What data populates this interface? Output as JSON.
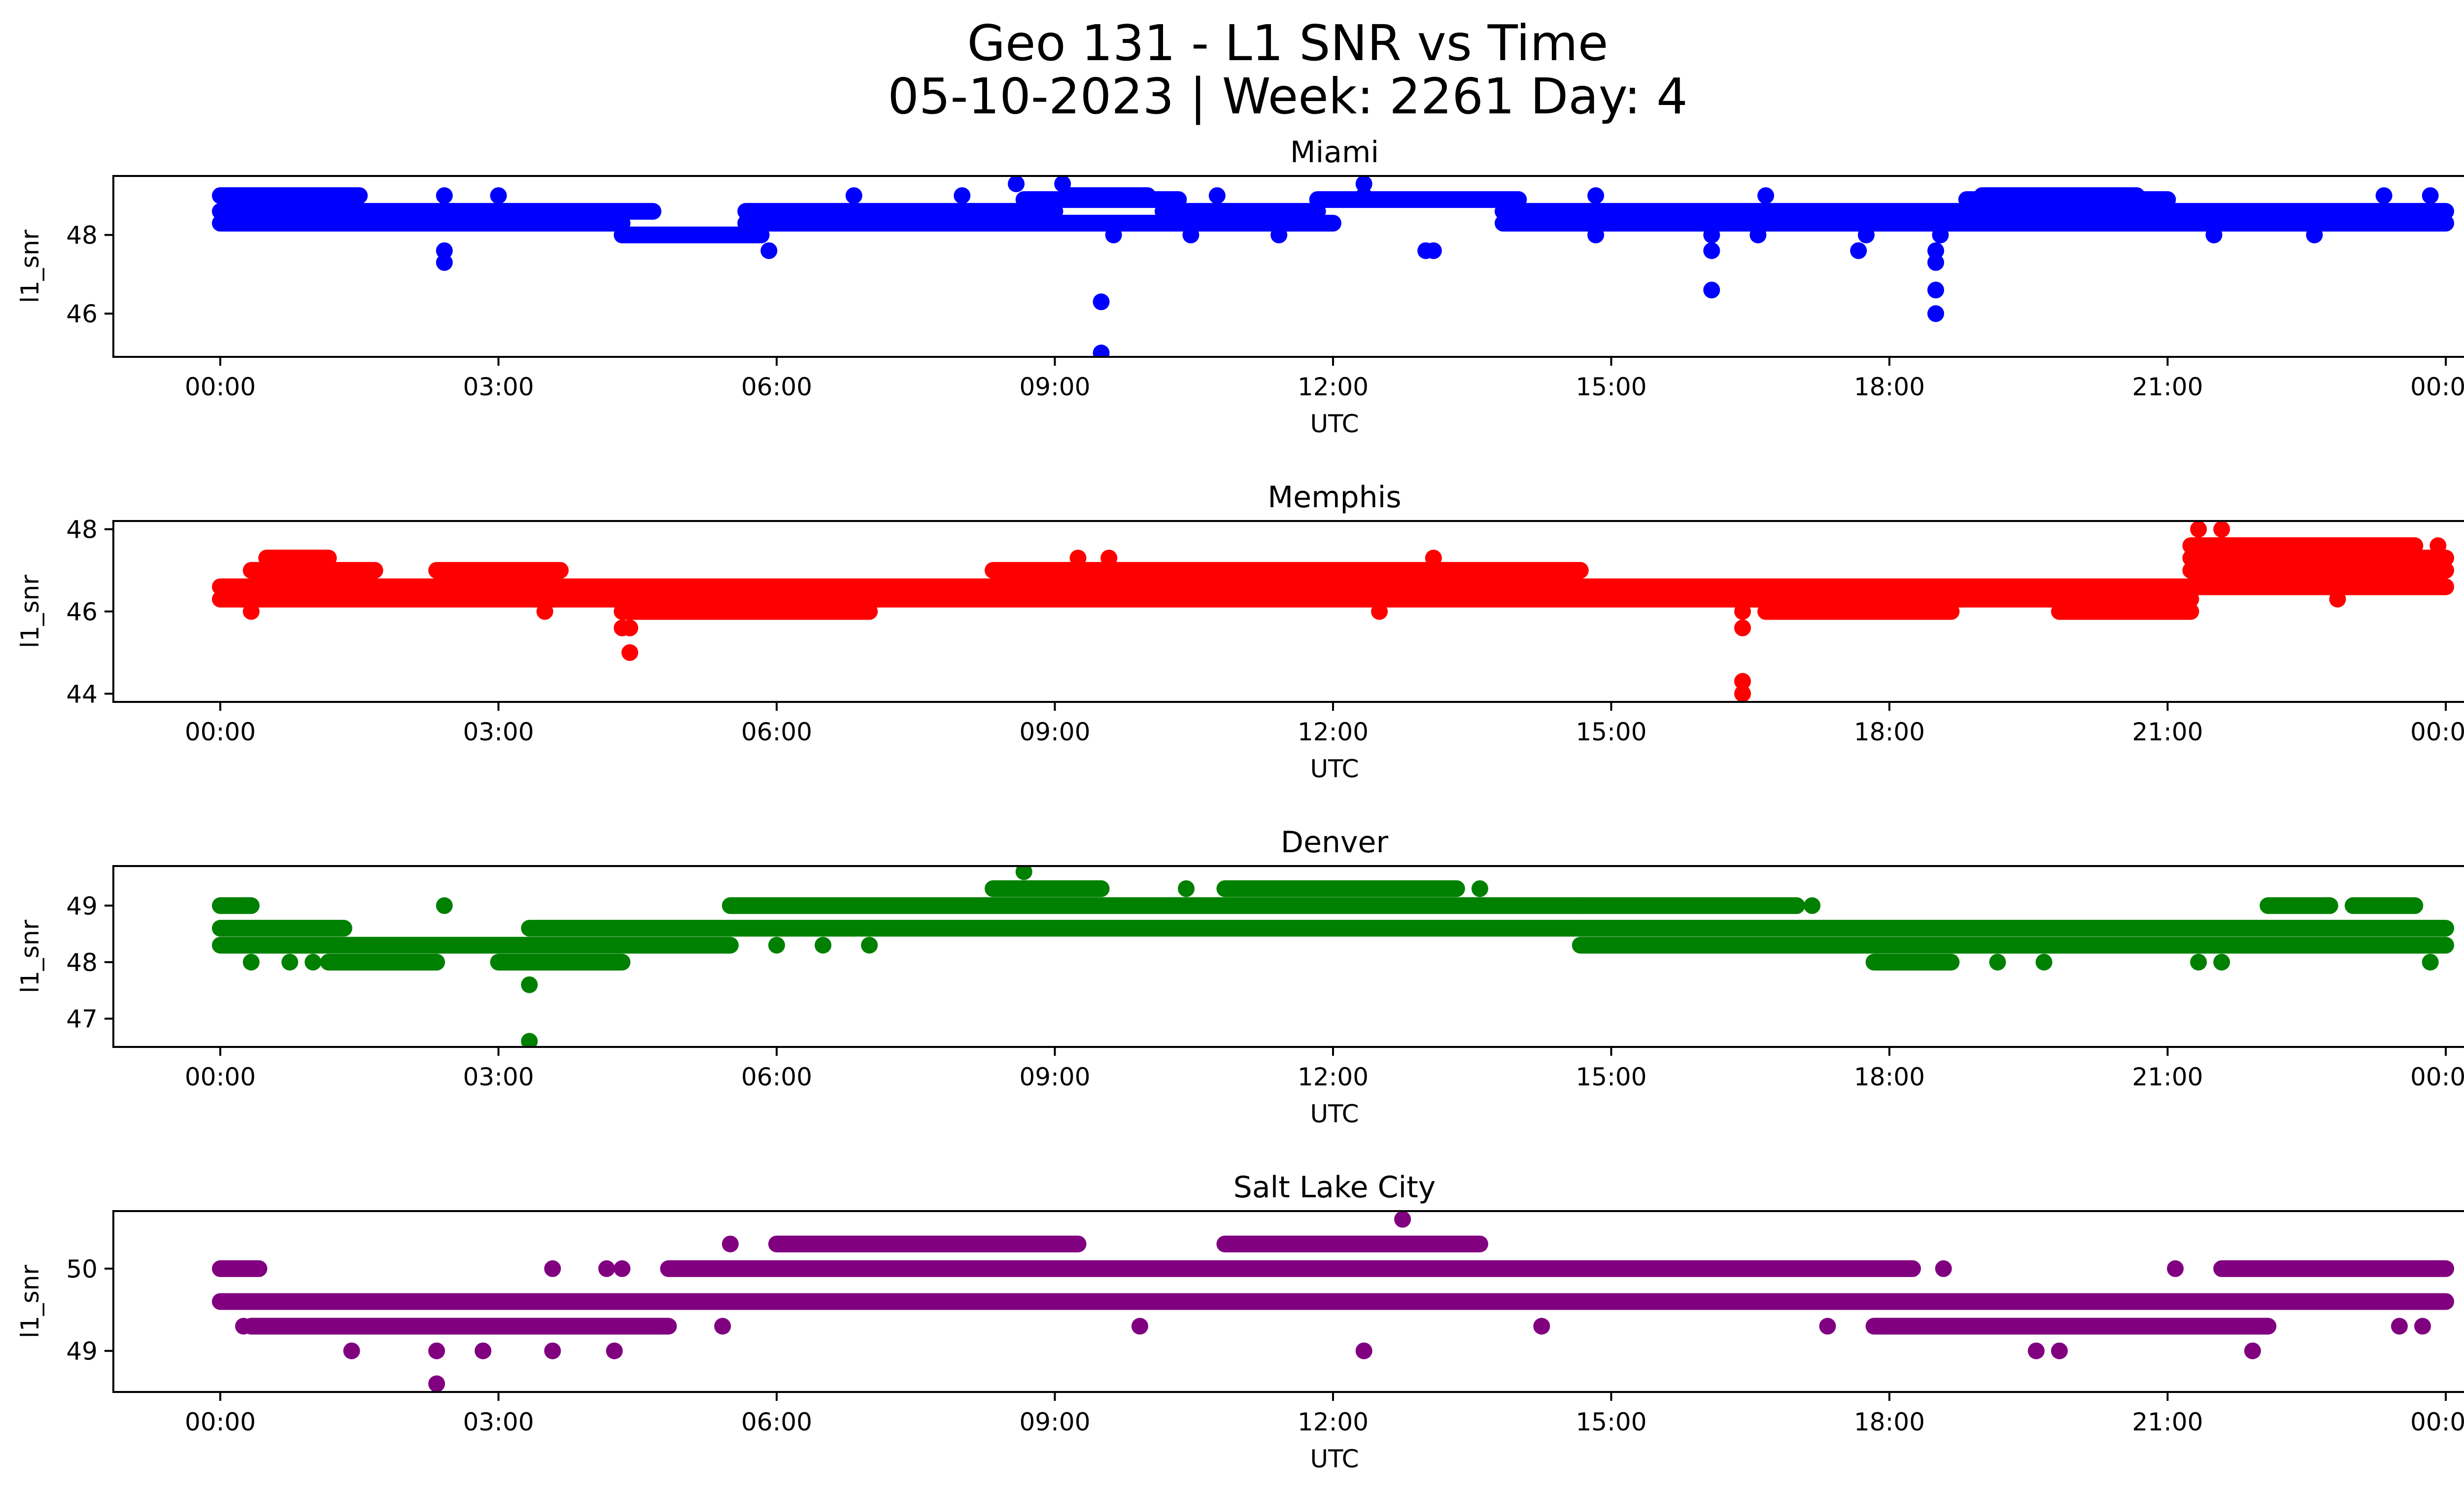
{
  "figure": {
    "title_line1": "Geo 131 - L1 SNR vs Time",
    "title_line2": "05-10-2023 | Week: 2261 Day: 4"
  },
  "chart_data": [
    {
      "type": "scatter",
      "title": "Miami",
      "color": "#0000ff",
      "xlabel": "UTC",
      "ylabel": "l1_snr",
      "xlim": [
        "00:00",
        "24:00"
      ],
      "ylim": [
        44.9,
        49.5
      ],
      "yticks": [
        46,
        48
      ],
      "xticks": [
        "00:00",
        "03:00",
        "06:00",
        "09:00",
        "12:00",
        "15:00",
        "18:00",
        "21:00",
        "00:00"
      ],
      "grid": false,
      "bands": [
        {
          "value": 48.3,
          "segments": [
            [
              "00:00",
              "04:20"
            ],
            [
              "05:40",
              "12:00"
            ],
            [
              "13:50",
              "24:00"
            ]
          ]
        },
        {
          "value": 48.6,
          "segments": [
            [
              "00:00",
              "04:40"
            ],
            [
              "05:40",
              "09:00"
            ],
            [
              "10:10",
              "11:50"
            ],
            [
              "13:50",
              "24:00"
            ]
          ]
        },
        {
          "value": 48.0,
          "segments": [
            [
              "04:20",
              "05:50"
            ]
          ]
        },
        {
          "value": 48.9,
          "segments": [
            [
              "08:40",
              "10:20"
            ],
            [
              "11:50",
              "14:00"
            ],
            [
              "18:50",
              "21:00"
            ]
          ]
        },
        {
          "value": 49.0,
          "segments": [
            [
              "00:00",
              "01:30"
            ],
            [
              "09:10",
              "10:00"
            ],
            [
              "19:00",
              "20:40"
            ]
          ]
        }
      ],
      "points": [
        [
          "02:25",
          47.6
        ],
        [
          "02:25",
          47.3
        ],
        [
          "05:55",
          47.6
        ],
        [
          "09:30",
          46.3
        ],
        [
          "09:30",
          45.0
        ],
        [
          "09:38",
          48.0
        ],
        [
          "10:28",
          48.0
        ],
        [
          "11:25",
          48.0
        ],
        [
          "12:20",
          49.3
        ],
        [
          "13:00",
          47.6
        ],
        [
          "13:05",
          47.6
        ],
        [
          "14:50",
          48.0
        ],
        [
          "16:05",
          47.6
        ],
        [
          "16:05",
          46.6
        ],
        [
          "16:05",
          48.0
        ],
        [
          "16:35",
          48.0
        ],
        [
          "17:40",
          47.6
        ],
        [
          "17:45",
          48.0
        ],
        [
          "18:30",
          47.6
        ],
        [
          "18:30",
          47.3
        ],
        [
          "18:30",
          46.6
        ],
        [
          "18:30",
          46.0
        ],
        [
          "18:33",
          48.0
        ],
        [
          "21:30",
          48.0
        ],
        [
          "22:35",
          48.0
        ],
        [
          "08:35",
          49.3
        ],
        [
          "09:05",
          49.3
        ],
        [
          "12:20",
          49.0
        ],
        [
          "02:25",
          49.0
        ],
        [
          "03:00",
          49.0
        ],
        [
          "06:50",
          49.0
        ],
        [
          "08:00",
          49.0
        ],
        [
          "10:45",
          49.0
        ],
        [
          "14:50",
          49.0
        ],
        [
          "16:40",
          49.0
        ],
        [
          "23:20",
          49.0
        ],
        [
          "23:50",
          49.0
        ]
      ]
    },
    {
      "type": "scatter",
      "title": "Memphis",
      "color": "#ff0000",
      "xlabel": "UTC",
      "ylabel": "l1_snr",
      "xlim": [
        "00:00",
        "24:00"
      ],
      "ylim": [
        43.8,
        48.2
      ],
      "yticks": [
        44,
        46,
        48
      ],
      "xticks": [
        "00:00",
        "03:00",
        "06:00",
        "09:00",
        "12:00",
        "15:00",
        "18:00",
        "21:00",
        "00:00"
      ],
      "grid": false,
      "bands": [
        {
          "value": 46.6,
          "segments": [
            [
              "00:00",
              "01:00"
            ],
            [
              "01:00",
              "24:00"
            ]
          ]
        },
        {
          "value": 46.3,
          "segments": [
            [
              "00:00",
              "21:15"
            ]
          ]
        },
        {
          "value": 47.0,
          "segments": [
            [
              "00:20",
              "01:40"
            ],
            [
              "02:20",
              "03:40"
            ],
            [
              "08:20",
              "14:40"
            ],
            [
              "21:15",
              "24:00"
            ]
          ]
        },
        {
          "value": 47.3,
          "segments": [
            [
              "00:30",
              "01:10"
            ],
            [
              "21:15",
              "24:00"
            ]
          ]
        },
        {
          "value": 46.0,
          "segments": [
            [
              "04:20",
              "07:00"
            ],
            [
              "16:40",
              "18:40"
            ],
            [
              "19:50",
              "21:15"
            ]
          ]
        },
        {
          "value": 47.6,
          "segments": [
            [
              "21:15",
              "23:40"
            ]
          ]
        }
      ],
      "points": [
        [
          "00:20",
          46.0
        ],
        [
          "03:30",
          46.0
        ],
        [
          "04:20",
          45.6
        ],
        [
          "04:25",
          45.6
        ],
        [
          "04:25",
          45.0
        ],
        [
          "12:30",
          46.0
        ],
        [
          "16:25",
          45.6
        ],
        [
          "16:25",
          44.3
        ],
        [
          "16:25",
          44.0
        ],
        [
          "16:25",
          46.0
        ],
        [
          "13:05",
          47.3
        ],
        [
          "21:20",
          48.0
        ],
        [
          "21:35",
          48.0
        ],
        [
          "22:50",
          46.3
        ],
        [
          "09:15",
          47.3
        ],
        [
          "09:35",
          47.3
        ],
        [
          "23:55",
          47.6
        ]
      ]
    },
    {
      "type": "scatter",
      "title": "Denver",
      "color": "#008000",
      "xlabel": "UTC",
      "ylabel": "l1_snr",
      "xlim": [
        "00:00",
        "24:00"
      ],
      "ylim": [
        46.5,
        49.7
      ],
      "yticks": [
        47,
        48,
        49
      ],
      "xticks": [
        "00:00",
        "03:00",
        "06:00",
        "09:00",
        "12:00",
        "15:00",
        "18:00",
        "21:00",
        "00:00"
      ],
      "grid": false,
      "bands": [
        {
          "value": 48.3,
          "segments": [
            [
              "00:00",
              "05:30"
            ],
            [
              "14:40",
              "24:00"
            ]
          ]
        },
        {
          "value": 48.6,
          "segments": [
            [
              "00:00",
              "01:20"
            ],
            [
              "03:20",
              "24:00"
            ]
          ]
        },
        {
          "value": 48.0,
          "segments": [
            [
              "01:10",
              "02:20"
            ],
            [
              "03:00",
              "04:20"
            ],
            [
              "17:50",
              "18:40"
            ]
          ]
        },
        {
          "value": 49.0,
          "segments": [
            [
              "05:30",
              "14:40"
            ],
            [
              "14:40",
              "17:00"
            ]
          ]
        },
        {
          "value": 49.3,
          "segments": [
            [
              "08:20",
              "09:30"
            ],
            [
              "10:50",
              "13:20"
            ]
          ]
        },
        {
          "value": 49.0,
          "segments": [
            [
              "00:00",
              "00:20"
            ],
            [
              "22:05",
              "22:45"
            ],
            [
              "23:00",
              "23:40"
            ]
          ]
        }
      ],
      "points": [
        [
          "00:20",
          48.0
        ],
        [
          "00:45",
          48.0
        ],
        [
          "01:00",
          48.0
        ],
        [
          "02:25",
          49.0
        ],
        [
          "03:20",
          47.6
        ],
        [
          "03:20",
          46.6
        ],
        [
          "08:40",
          49.6
        ],
        [
          "06:00",
          48.3
        ],
        [
          "06:30",
          48.3
        ],
        [
          "07:00",
          48.3
        ],
        [
          "10:25",
          49.3
        ],
        [
          "13:35",
          49.3
        ],
        [
          "17:10",
          49.0
        ],
        [
          "19:10",
          48.0
        ],
        [
          "19:40",
          48.0
        ],
        [
          "21:20",
          48.0
        ],
        [
          "21:35",
          48.0
        ],
        [
          "23:50",
          48.0
        ]
      ]
    },
    {
      "type": "scatter",
      "title": "Salt Lake City",
      "color": "#800080",
      "xlabel": "UTC",
      "ylabel": "l1_snr",
      "xlim": [
        "00:00",
        "24:00"
      ],
      "ylim": [
        48.5,
        50.7
      ],
      "yticks": [
        49,
        50
      ],
      "xticks": [
        "00:00",
        "03:00",
        "06:00",
        "09:00",
        "12:00",
        "15:00",
        "18:00",
        "21:00",
        "00:00"
      ],
      "grid": false,
      "bands": [
        {
          "value": 49.6,
          "segments": [
            [
              "00:00",
              "24:00"
            ]
          ]
        },
        {
          "value": 49.3,
          "segments": [
            [
              "00:20",
              "04:50"
            ],
            [
              "17:50",
              "22:05"
            ]
          ]
        },
        {
          "value": 50.0,
          "segments": [
            [
              "00:00",
              "00:25"
            ],
            [
              "04:50",
              "18:15"
            ],
            [
              "21:35",
              "24:00"
            ]
          ]
        },
        {
          "value": 50.3,
          "segments": [
            [
              "06:00",
              "09:15"
            ],
            [
              "10:50",
              "13:35"
            ]
          ]
        }
      ],
      "points": [
        [
          "00:15",
          49.3
        ],
        [
          "01:25",
          49.0
        ],
        [
          "02:20",
          49.0
        ],
        [
          "02:20",
          48.6
        ],
        [
          "02:50",
          49.0
        ],
        [
          "03:35",
          49.0
        ],
        [
          "04:15",
          49.0
        ],
        [
          "05:25",
          49.3
        ],
        [
          "05:30",
          50.3
        ],
        [
          "03:35",
          50.0
        ],
        [
          "09:55",
          49.3
        ],
        [
          "12:20",
          49.0
        ],
        [
          "12:45",
          50.6
        ],
        [
          "14:15",
          49.3
        ],
        [
          "17:20",
          49.3
        ],
        [
          "18:35",
          50.0
        ],
        [
          "19:35",
          49.0
        ],
        [
          "19:50",
          49.0
        ],
        [
          "21:05",
          50.0
        ],
        [
          "21:55",
          49.0
        ],
        [
          "23:30",
          49.3
        ],
        [
          "23:45",
          49.3
        ],
        [
          "04:10",
          50.0
        ],
        [
          "04:20",
          50.0
        ]
      ]
    }
  ]
}
